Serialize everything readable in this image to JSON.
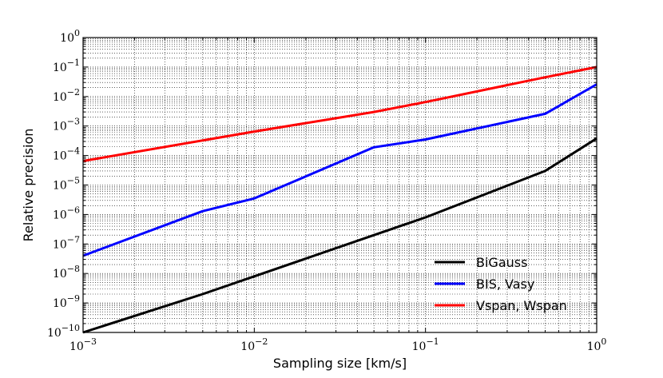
{
  "chart_data": {
    "type": "line",
    "title": "",
    "xlabel": "Sampling size [km/s]",
    "ylabel": "Relative precision",
    "xscale": "log",
    "yscale": "log",
    "xlim": [
      0.001,
      1
    ],
    "ylim": [
      1e-10,
      1
    ],
    "grid": true,
    "legend_position": "bottom-right",
    "x_ticks": [
      {
        "value": 0.001,
        "base": "10",
        "exp": "−3"
      },
      {
        "value": 0.01,
        "base": "10",
        "exp": "−2"
      },
      {
        "value": 0.1,
        "base": "10",
        "exp": "−1"
      },
      {
        "value": 1,
        "base": "10",
        "exp": "0"
      }
    ],
    "y_ticks": [
      {
        "value": 1,
        "base": "10",
        "exp": "0"
      },
      {
        "value": 0.1,
        "base": "10",
        "exp": "−1"
      },
      {
        "value": 0.01,
        "base": "10",
        "exp": "−2"
      },
      {
        "value": 0.001,
        "base": "10",
        "exp": "−3"
      },
      {
        "value": 0.0001,
        "base": "10",
        "exp": "−4"
      },
      {
        "value": 1e-05,
        "base": "10",
        "exp": "−5"
      },
      {
        "value": 1e-06,
        "base": "10",
        "exp": "−6"
      },
      {
        "value": 1e-07,
        "base": "10",
        "exp": "−7"
      },
      {
        "value": 1e-08,
        "base": "10",
        "exp": "−8"
      },
      {
        "value": 1e-09,
        "base": "10",
        "exp": "−9"
      },
      {
        "value": 1e-10,
        "base": "10",
        "exp": "−10"
      }
    ],
    "series": [
      {
        "name": "BiGauss",
        "color": "#000000",
        "x": [
          0.001,
          0.005,
          0.01,
          0.05,
          0.1,
          0.5,
          1
        ],
        "y": [
          1e-10,
          2e-09,
          8e-09,
          2e-07,
          8e-07,
          3e-05,
          0.00038
        ]
      },
      {
        "name": "BIS, Vasy",
        "color": "#0000ff",
        "x": [
          0.001,
          0.005,
          0.01,
          0.05,
          0.1,
          0.5,
          1
        ],
        "y": [
          4e-08,
          1.3e-06,
          3.5e-06,
          0.00019,
          0.00035,
          0.0026,
          0.026
        ]
      },
      {
        "name": "Vspan, Wspan",
        "color": "#ff0000",
        "x": [
          0.001,
          0.01,
          0.05,
          0.1,
          0.5,
          1
        ],
        "y": [
          6.5e-05,
          0.00065,
          0.003,
          0.0065,
          0.045,
          0.1
        ]
      }
    ]
  }
}
